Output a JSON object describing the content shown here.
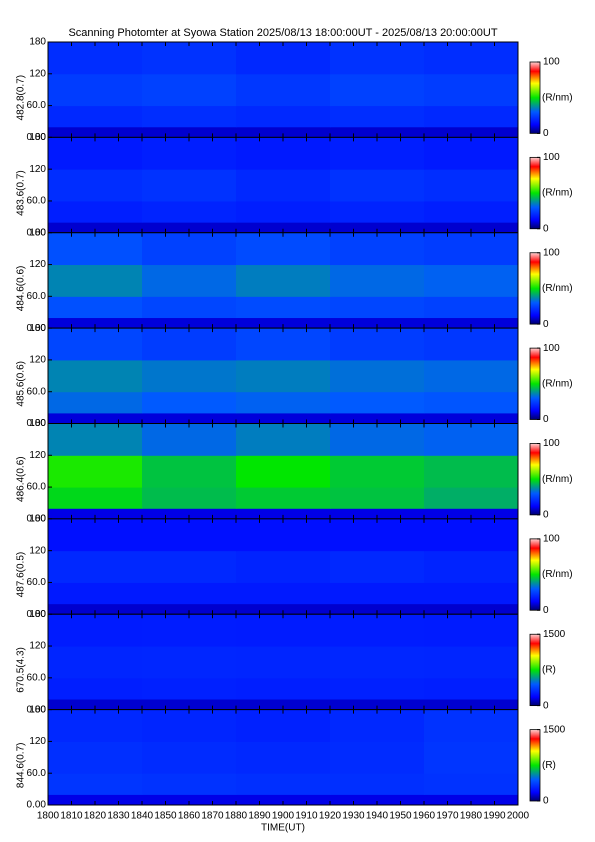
{
  "title": "Scanning Photomter at Syowa Station 2025/08/13 18:00:00UT - 2025/08/13 20:00:00UT",
  "x_axis": {
    "label": "TIME(UT)",
    "xlim": [
      1800,
      2000
    ],
    "xticks": [
      1800,
      1810,
      1820,
      1830,
      1840,
      1850,
      1860,
      1870,
      1880,
      1890,
      1900,
      1910,
      1920,
      1930,
      1940,
      1950,
      1960,
      1970,
      1980,
      1990,
      2000
    ],
    "xbins": [
      1800,
      1840,
      1880,
      1920,
      1960,
      2000
    ]
  },
  "chart_data": [
    {
      "type": "heatmap",
      "ylabel": "482.8(0.7)",
      "ylim": [
        0,
        180
      ],
      "yticks": [
        {
          "value": 0,
          "label": "0.00"
        },
        {
          "value": 60,
          "label": "60.0"
        },
        120,
        180
      ],
      "ybins": [
        0,
        20,
        60,
        120,
        180
      ],
      "values": [
        [
          8,
          8,
          8,
          8,
          8
        ],
        [
          20,
          21,
          20,
          21,
          20
        ],
        [
          24,
          25,
          23,
          25,
          24
        ],
        [
          21,
          22,
          20,
          22,
          21
        ]
      ],
      "colorbar": {
        "lim": [
          0,
          100
        ],
        "ticks": [
          0,
          100
        ],
        "label": "(R/nm)"
      }
    },
    {
      "type": "heatmap",
      "ylabel": "483.6(0.7)",
      "ylim": [
        0,
        180
      ],
      "yticks": [
        {
          "value": 0,
          "label": "0.00"
        },
        {
          "value": 60,
          "label": "60.0"
        },
        120,
        180
      ],
      "ybins": [
        0,
        20,
        60,
        120,
        180
      ],
      "values": [
        [
          8,
          8,
          8,
          8,
          8
        ],
        [
          18,
          19,
          18,
          19,
          18
        ],
        [
          21,
          22,
          20,
          22,
          21
        ],
        [
          17,
          18,
          17,
          18,
          17
        ]
      ],
      "colorbar": {
        "lim": [
          0,
          100
        ],
        "ticks": [
          0,
          100
        ],
        "label": "(R/nm)"
      }
    },
    {
      "type": "heatmap",
      "ylabel": "484.6(0.6)",
      "ylim": [
        0,
        180
      ],
      "yticks": [
        {
          "value": 0,
          "label": "0.00"
        },
        {
          "value": 60,
          "label": "60.0"
        },
        120,
        180
      ],
      "ybins": [
        0,
        20,
        60,
        120,
        180
      ],
      "values": [
        [
          9,
          9,
          9,
          9,
          9
        ],
        [
          28,
          26,
          27,
          26,
          25
        ],
        [
          36,
          32,
          35,
          32,
          31
        ],
        [
          28,
          25,
          27,
          25,
          24
        ]
      ],
      "colorbar": {
        "lim": [
          0,
          100
        ],
        "ticks": [
          0,
          100
        ],
        "label": "(R/nm)"
      }
    },
    {
      "type": "heatmap",
      "ylabel": "485.6(0.6)",
      "ylim": [
        0,
        180
      ],
      "yticks": [
        {
          "value": 0,
          "label": "0.00"
        },
        {
          "value": 60,
          "label": "60.0"
        },
        120,
        180
      ],
      "ybins": [
        0,
        20,
        60,
        120,
        180
      ],
      "values": [
        [
          9,
          9,
          9,
          9,
          9
        ],
        [
          32,
          30,
          31,
          30,
          29
        ],
        [
          36,
          34,
          35,
          33,
          32
        ],
        [
          26,
          24,
          26,
          24,
          23
        ]
      ],
      "colorbar": {
        "lim": [
          0,
          100
        ],
        "ticks": [
          0,
          100
        ],
        "label": "(R/nm)"
      }
    },
    {
      "type": "heatmap",
      "ylabel": "486.4(0.6)",
      "ylim": [
        0,
        180
      ],
      "yticks": [
        {
          "value": 0,
          "label": "0.00"
        },
        {
          "value": 60,
          "label": "60.0"
        },
        120,
        180
      ],
      "ybins": [
        0,
        20,
        60,
        120,
        180
      ],
      "values": [
        [
          10,
          10,
          10,
          10,
          10
        ],
        [
          48,
          44,
          46,
          45,
          42
        ],
        [
          52,
          45,
          50,
          46,
          44
        ],
        [
          36,
          32,
          35,
          32,
          31
        ]
      ],
      "colorbar": {
        "lim": [
          0,
          100
        ],
        "ticks": [
          0,
          100
        ],
        "label": "(R/nm)"
      }
    },
    {
      "type": "heatmap",
      "ylabel": "487.6(0.5)",
      "ylim": [
        0,
        180
      ],
      "yticks": [
        {
          "value": 0,
          "label": "0.00"
        },
        {
          "value": 60,
          "label": "60.0"
        },
        120,
        180
      ],
      "ybins": [
        0,
        20,
        60,
        120,
        180
      ],
      "values": [
        [
          8,
          8,
          8,
          8,
          8
        ],
        [
          17,
          17,
          17,
          17,
          17
        ],
        [
          20,
          20,
          19,
          20,
          19
        ],
        [
          15,
          15,
          15,
          15,
          15
        ]
      ],
      "colorbar": {
        "lim": [
          0,
          100
        ],
        "ticks": [
          0,
          100
        ],
        "label": "(R/nm)"
      }
    },
    {
      "type": "heatmap",
      "ylabel": "670.5(4.3)",
      "ylim": [
        0,
        180
      ],
      "yticks": [
        {
          "value": 0,
          "label": "0.00"
        },
        {
          "value": 60,
          "label": "60.0"
        },
        120,
        180
      ],
      "ybins": [
        0,
        20,
        60,
        120,
        180
      ],
      "values": [
        [
          120,
          120,
          120,
          120,
          120
        ],
        [
          270,
          275,
          270,
          275,
          270
        ],
        [
          290,
          295,
          290,
          295,
          290
        ],
        [
          260,
          265,
          260,
          265,
          260
        ]
      ],
      "colorbar": {
        "lim": [
          0,
          1500
        ],
        "ticks": [
          0,
          1500
        ],
        "label": "(R)"
      }
    },
    {
      "type": "heatmap",
      "ylabel": "844.6(0.7)",
      "ylim": [
        0,
        180
      ],
      "yticks": [
        {
          "value": 0,
          "label": "0.00"
        },
        {
          "value": 60,
          "label": "60.0"
        },
        120,
        180
      ],
      "ybins": [
        0,
        20,
        60,
        120,
        180
      ],
      "values": [
        [
          150,
          150,
          150,
          150,
          150
        ],
        [
          340,
          330,
          320,
          320,
          330
        ],
        [
          320,
          310,
          300,
          310,
          340
        ],
        [
          300,
          290,
          280,
          300,
          330
        ]
      ],
      "colorbar": {
        "lim": [
          0,
          1500
        ],
        "ticks": [
          0,
          1500
        ],
        "label": "(R)"
      }
    }
  ]
}
